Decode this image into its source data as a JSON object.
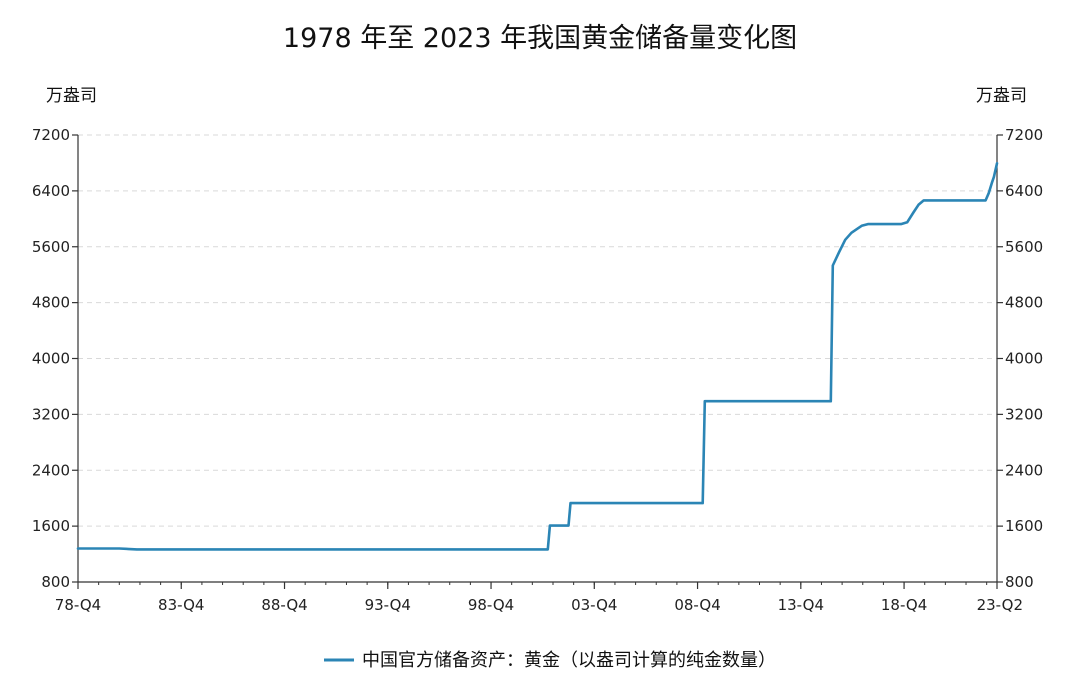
{
  "colors": {
    "line": "#2b85b5",
    "axis": "#333333",
    "grid": "#d9d9d9"
  },
  "chart_data": {
    "type": "line",
    "title": "1978 年至 2023 年我国黄金储备量变化图",
    "y_unit_left": "万盎司",
    "y_unit_right": "万盎司",
    "ylim": [
      800,
      7200
    ],
    "yticks": [
      800,
      1600,
      2400,
      3200,
      4000,
      4800,
      5600,
      6400,
      7200
    ],
    "xlim": [
      1978.75,
      2023.25
    ],
    "xticks": [
      {
        "x": 1978.75,
        "label": "78-Q4"
      },
      {
        "x": 1983.75,
        "label": "83-Q4"
      },
      {
        "x": 1988.75,
        "label": "88-Q4"
      },
      {
        "x": 1993.75,
        "label": "93-Q4"
      },
      {
        "x": 1998.75,
        "label": "98-Q4"
      },
      {
        "x": 2003.75,
        "label": "03-Q4"
      },
      {
        "x": 2008.75,
        "label": "08-Q4"
      },
      {
        "x": 2013.75,
        "label": "13-Q4"
      },
      {
        "x": 2018.75,
        "label": "18-Q4"
      },
      {
        "x": 2023.25,
        "label": "23-Q2"
      }
    ],
    "grid": "horizontal dashed",
    "legend_position": "bottom-center",
    "series": [
      {
        "name": "中国官方储备资产：黄金（以盎司计算的纯金数量）",
        "points": [
          [
            1978.75,
            1280
          ],
          [
            1980.75,
            1280
          ],
          [
            1981.6,
            1267
          ],
          [
            2001.5,
            1267
          ],
          [
            2001.6,
            1608
          ],
          [
            2002.5,
            1608
          ],
          [
            2002.6,
            1929
          ],
          [
            2009.0,
            1929
          ],
          [
            2009.1,
            3389
          ],
          [
            2015.2,
            3389
          ],
          [
            2015.3,
            5332
          ],
          [
            2015.6,
            5520
          ],
          [
            2015.9,
            5700
          ],
          [
            2016.2,
            5800
          ],
          [
            2016.5,
            5860
          ],
          [
            2016.7,
            5900
          ],
          [
            2017.0,
            5924
          ],
          [
            2018.6,
            5924
          ],
          [
            2018.9,
            5950
          ],
          [
            2019.2,
            6090
          ],
          [
            2019.45,
            6200
          ],
          [
            2019.7,
            6264
          ],
          [
            2022.7,
            6264
          ],
          [
            2022.85,
            6367
          ],
          [
            2023.0,
            6512
          ],
          [
            2023.1,
            6600
          ],
          [
            2023.25,
            6795
          ]
        ]
      }
    ]
  }
}
